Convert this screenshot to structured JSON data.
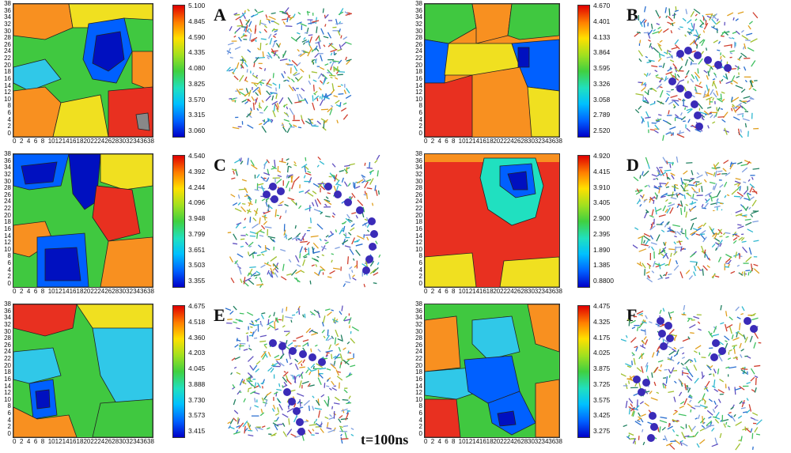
{
  "y_ticks": [
    "38",
    "36",
    "34",
    "32",
    "30",
    "28",
    "26",
    "24",
    "22",
    "20",
    "18",
    "16",
    "14",
    "12",
    "10",
    "8",
    "6",
    "4",
    "2",
    "0"
  ],
  "x_ticks": [
    "0",
    "2",
    "4",
    "6",
    "8",
    "10",
    "12",
    "14",
    "16",
    "18",
    "20",
    "22",
    "24",
    "26",
    "28",
    "30",
    "32",
    "34",
    "36",
    "38"
  ],
  "panels": [
    {
      "letter": "A",
      "cbar": [
        "5.100",
        "4.845",
        "4.590",
        "4.335",
        "4.080",
        "3.825",
        "3.570",
        "3.315",
        "3.060"
      ]
    },
    {
      "letter": "B",
      "cbar": [
        "4.670",
        "4.401",
        "4.133",
        "3.864",
        "3.595",
        "3.326",
        "3.058",
        "2.789",
        "2.520"
      ]
    },
    {
      "letter": "C",
      "cbar": [
        "4.540",
        "4.392",
        "4.244",
        "4.096",
        "3.948",
        "3.799",
        "3.651",
        "3.503",
        "3.355"
      ]
    },
    {
      "letter": "D",
      "cbar": [
        "4.920",
        "4.415",
        "3.910",
        "3.405",
        "2.900",
        "2.395",
        "1.890",
        "1.385",
        "0.8800"
      ]
    },
    {
      "letter": "E",
      "cbar": [
        "4.675",
        "4.518",
        "4.360",
        "4.203",
        "4.045",
        "3.888",
        "3.730",
        "3.573",
        "3.415"
      ]
    },
    {
      "letter": "F",
      "cbar": [
        "4.475",
        "4.325",
        "4.175",
        "4.025",
        "3.875",
        "3.725",
        "3.575",
        "3.425",
        "3.275"
      ]
    }
  ],
  "caption": "t=100ns",
  "colors": {
    "chain": "#3a2bb8",
    "blue": "#0010c0",
    "cyan": "#30c8e8",
    "green": "#40c840",
    "yellow": "#f0e020",
    "orange": "#f89020",
    "red": "#e83020"
  }
}
